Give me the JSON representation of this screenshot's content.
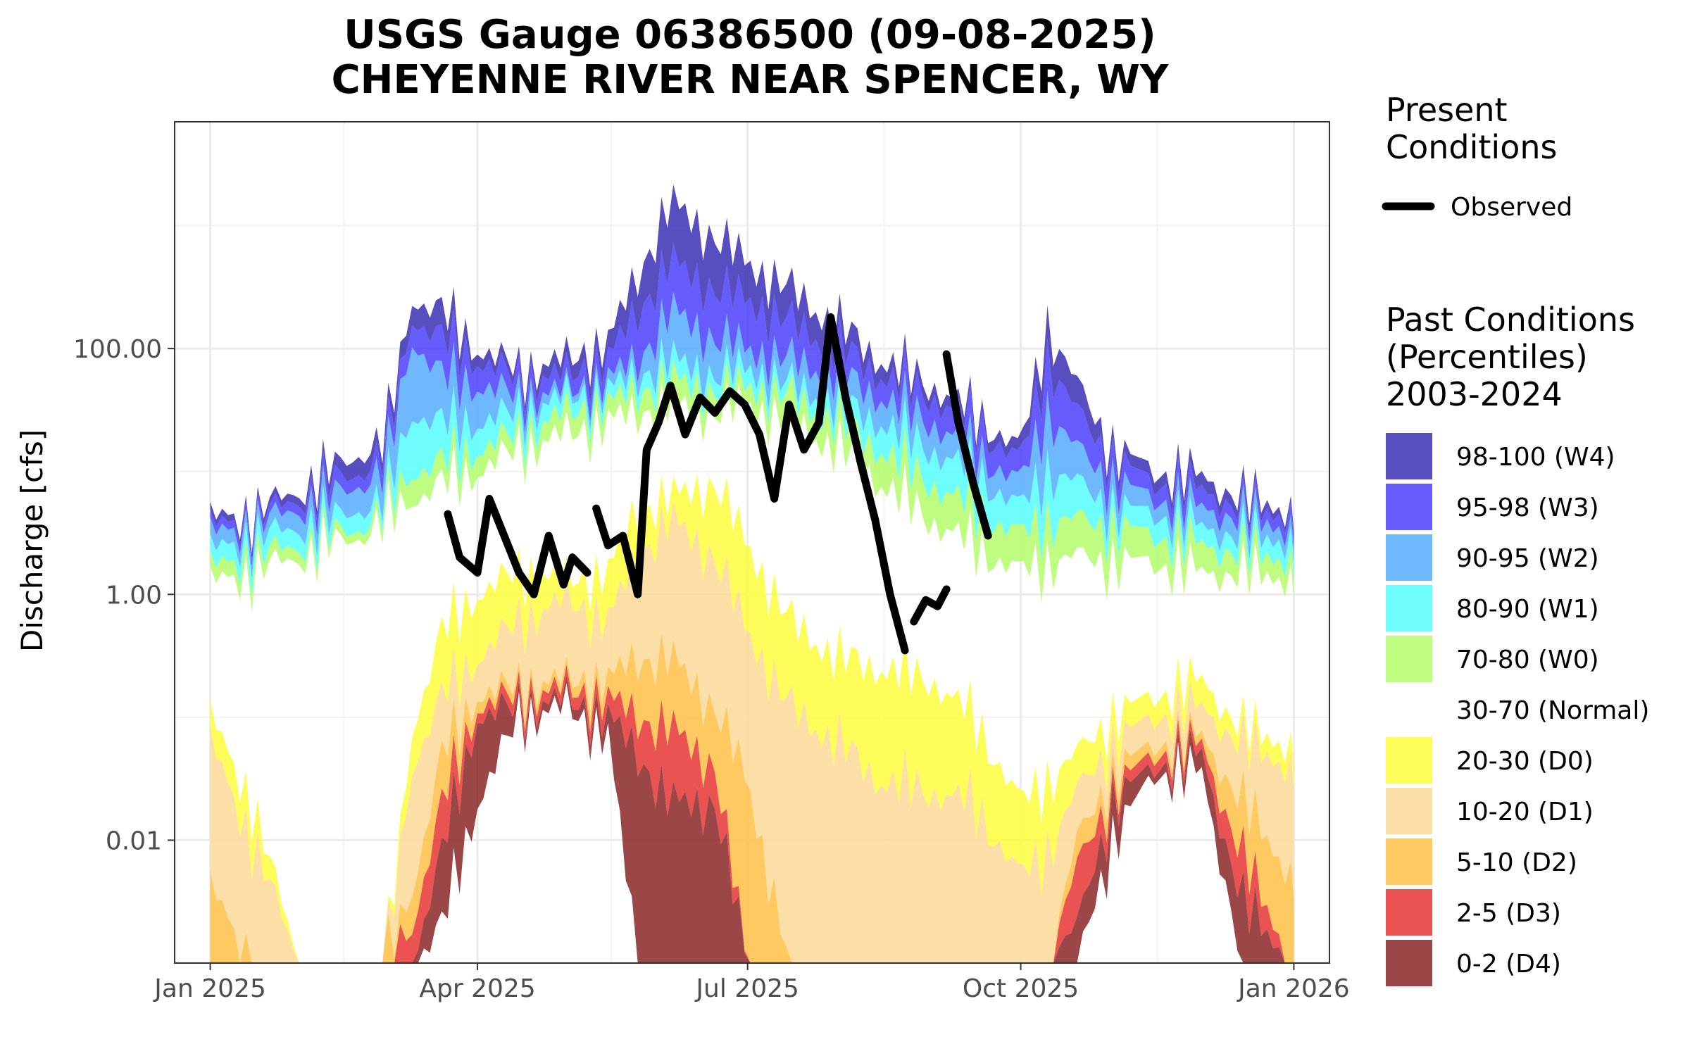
{
  "chart_data": {
    "type": "area",
    "title": "USGS Gauge 06386500 (09-08-2025)",
    "subtitle": "CHEYENNE RIVER NEAR SPENCER, WY",
    "xlabel": "",
    "ylabel": "Discharge [cfs]",
    "yscale": "log",
    "ylim": [
      0.001,
      7000
    ],
    "xlim": [
      "2024-12-20",
      "2026-01-13"
    ],
    "grid": true,
    "x_ticks": [
      {
        "date": "2025-01-01",
        "label": "Jan 2025"
      },
      {
        "date": "2025-04-01",
        "label": "Apr 2025"
      },
      {
        "date": "2025-07-01",
        "label": "Jul 2025"
      },
      {
        "date": "2025-10-01",
        "label": "Oct 2025"
      },
      {
        "date": "2026-01-01",
        "label": "Jan 2026"
      }
    ],
    "y_ticks": [
      {
        "value": 100,
        "label": "100.00"
      },
      {
        "value": 1,
        "label": "1.00"
      },
      {
        "value": 0.01,
        "label": "0.01"
      }
    ],
    "legend": {
      "placement": "right",
      "present_title": [
        "Present",
        "Conditions"
      ],
      "observed_label": "Observed",
      "past_title": [
        "Past Conditions",
        "(Percentiles)",
        "2003-2024"
      ],
      "bands": [
        {
          "label": "98-100 (W4)",
          "color": "#3b2fb4"
        },
        {
          "label": "95-98 (W3)",
          "color": "#4b3ffd"
        },
        {
          "label": "90-95 (W2)",
          "color": "#55acfd"
        },
        {
          "label": "80-90 (W1)",
          "color": "#55fdfd"
        },
        {
          "label": "70-80 (W0)",
          "color": "#b3fd6a"
        },
        {
          "label": "30-70 (Normal)",
          "color": "#ffffff"
        },
        {
          "label": "20-30 (D0)",
          "color": "#fdfd3c"
        },
        {
          "label": "10-20 (D1)",
          "color": "#fad998"
        },
        {
          "label": "5-10 (D2)",
          "color": "#fdbf44"
        },
        {
          "label": "2-5 (D3)",
          "color": "#e83434"
        },
        {
          "label": "0-2 (D4)",
          "color": "#8b2727"
        }
      ]
    },
    "percentile_dates": [
      "2025-01-01",
      "2025-01-15",
      "2025-01-31",
      "2025-02-10",
      "2025-02-20",
      "2025-03-01",
      "2025-03-10",
      "2025-03-20",
      "2025-04-01",
      "2025-04-15",
      "2025-05-01",
      "2025-05-15",
      "2025-05-25",
      "2025-06-05",
      "2025-06-20",
      "2025-07-01",
      "2025-07-15",
      "2025-08-01",
      "2025-08-15",
      "2025-09-01",
      "2025-09-15",
      "2025-10-01",
      "2025-10-10",
      "2025-10-20",
      "2025-11-01",
      "2025-11-15",
      "2025-12-01",
      "2025-12-15",
      "2026-01-01"
    ],
    "percentile_bands": {
      "p0": [
        0.001,
        0.001,
        0.001,
        0.001,
        0.001,
        0.001,
        0.001,
        0.002,
        0.02,
        0.1,
        0.12,
        0.07,
        0.001,
        0.001,
        0.001,
        0.001,
        0.001,
        0.001,
        0.001,
        0.001,
        0.001,
        0.001,
        0.001,
        0.001,
        0.01,
        0.035,
        0.035,
        0.001,
        0.001
      ],
      "p2": [
        0.001,
        0.001,
        0.001,
        0.001,
        0.001,
        0.001,
        0.001,
        0.008,
        0.1,
        0.12,
        0.14,
        0.1,
        0.05,
        0.02,
        0.02,
        0.001,
        0.001,
        0.001,
        0.001,
        0.001,
        0.001,
        0.001,
        0.001,
        0.002,
        0.02,
        0.04,
        0.05,
        0.003,
        0.001
      ],
      "p5": [
        0.001,
        0.001,
        0.001,
        0.001,
        0.001,
        0.001,
        0.002,
        0.02,
        0.12,
        0.15,
        0.17,
        0.14,
        0.1,
        0.08,
        0.04,
        0.001,
        0.001,
        0.001,
        0.001,
        0.001,
        0.001,
        0.001,
        0.001,
        0.006,
        0.025,
        0.05,
        0.06,
        0.007,
        0.001
      ],
      "p10": [
        0.004,
        0.001,
        0.001,
        0.001,
        0.001,
        0.001,
        0.004,
        0.05,
        0.15,
        0.18,
        0.2,
        0.2,
        0.3,
        0.3,
        0.12,
        0.03,
        0.001,
        0.001,
        0.001,
        0.001,
        0.001,
        0.001,
        0.001,
        0.01,
        0.035,
        0.06,
        0.07,
        0.02,
        0.005
      ],
      "p20": [
        0.06,
        0.01,
        0.001,
        0.001,
        0.001,
        0.001,
        0.04,
        0.15,
        0.3,
        0.6,
        0.9,
        0.6,
        2,
        4,
        2,
        0.5,
        0.12,
        0.06,
        0.03,
        0.025,
        0.02,
        0.005,
        0.008,
        0.025,
        0.06,
        0.1,
        0.12,
        0.06,
        0.04
      ],
      "p30": [
        0.1,
        0.02,
        0.001,
        0.001,
        0.001,
        0.001,
        0.08,
        0.5,
        1,
        1.5,
        1.3,
        1.5,
        5,
        6,
        8,
        2.5,
        0.6,
        0.3,
        0.25,
        0.2,
        0.1,
        0.02,
        0.03,
        0.05,
        0.1,
        0.15,
        0.2,
        0.08,
        0.06
      ],
      "p70": [
        1.2,
        1.5,
        2,
        2.5,
        3,
        4,
        6,
        8,
        10,
        15,
        20,
        25,
        30,
        35,
        30,
        35,
        25,
        15,
        8,
        4,
        2.5,
        1.5,
        1.8,
        2,
        1.8,
        1.8,
        1.5,
        1.5,
        1.4
      ],
      "p80": [
        1.6,
        2,
        2.5,
        3,
        3.5,
        5,
        10,
        12,
        15,
        20,
        30,
        35,
        45,
        55,
        45,
        50,
        40,
        25,
        15,
        8,
        5,
        3,
        4,
        4,
        3.5,
        3,
        2.5,
        2.2,
        2
      ],
      "p90": [
        2.2,
        2.8,
        3.5,
        4,
        5,
        6,
        30,
        25,
        25,
        30,
        40,
        45,
        60,
        80,
        60,
        70,
        50,
        35,
        25,
        15,
        10,
        5,
        10,
        8,
        5,
        4.5,
        3.5,
        3,
        2.8
      ],
      "p95": [
        3,
        3.5,
        5,
        6,
        8,
        10,
        120,
        60,
        50,
        40,
        45,
        55,
        80,
        200,
        120,
        100,
        80,
        60,
        40,
        25,
        15,
        8,
        30,
        15,
        8,
        6,
        5,
        4.2,
        3.5
      ],
      "p98": [
        3.5,
        4,
        6,
        8,
        10,
        14,
        180,
        120,
        80,
        55,
        60,
        80,
        200,
        500,
        300,
        250,
        160,
        100,
        60,
        40,
        25,
        12,
        80,
        30,
        12,
        8,
        7,
        5,
        4.5
      ],
      "p100": [
        4,
        4.5,
        7,
        10,
        14,
        18,
        260,
        200,
        100,
        65,
        80,
        110,
        400,
        1500,
        800,
        500,
        300,
        150,
        80,
        50,
        30,
        15,
        150,
        50,
        15,
        10,
        9,
        6,
        5
      ]
    },
    "observed_segments": [
      {
        "name": "Observed",
        "x": [
          "2025-03-22",
          "2025-03-26",
          "2025-04-01",
          "2025-04-05",
          "2025-04-10",
          "2025-04-15",
          "2025-04-20",
          "2025-04-25",
          "2025-04-30",
          "2025-05-03",
          "2025-05-08"
        ],
        "y": [
          4.5,
          2,
          1.5,
          6,
          3,
          1.5,
          1,
          3,
          1.2,
          2,
          1.5
        ]
      },
      {
        "name": "Observed",
        "x": [
          "2025-05-11",
          "2025-05-15",
          "2025-05-20",
          "2025-05-25",
          "2025-05-28",
          "2025-06-01",
          "2025-06-05",
          "2025-06-10",
          "2025-06-15",
          "2025-06-20",
          "2025-06-25",
          "2025-06-30",
          "2025-07-05",
          "2025-07-10",
          "2025-07-15",
          "2025-07-20",
          "2025-07-25",
          "2025-07-29",
          "2025-08-03",
          "2025-08-08",
          "2025-08-13",
          "2025-08-18",
          "2025-08-23"
        ],
        "y": [
          5,
          2.5,
          3,
          1,
          15,
          25,
          50,
          20,
          40,
          30,
          45,
          35,
          20,
          6,
          35,
          15,
          25,
          180,
          40,
          12,
          4,
          1,
          0.35
        ]
      },
      {
        "name": "Observed",
        "x": [
          "2025-08-26",
          "2025-08-30",
          "2025-09-03",
          "2025-09-06"
        ],
        "y": [
          0.6,
          0.9,
          0.8,
          1.1
        ]
      },
      {
        "name": "Observed",
        "x": [
          "2025-09-06",
          "2025-09-10",
          "2025-09-15",
          "2025-09-20"
        ],
        "y": [
          90,
          25,
          8,
          3
        ]
      }
    ]
  }
}
